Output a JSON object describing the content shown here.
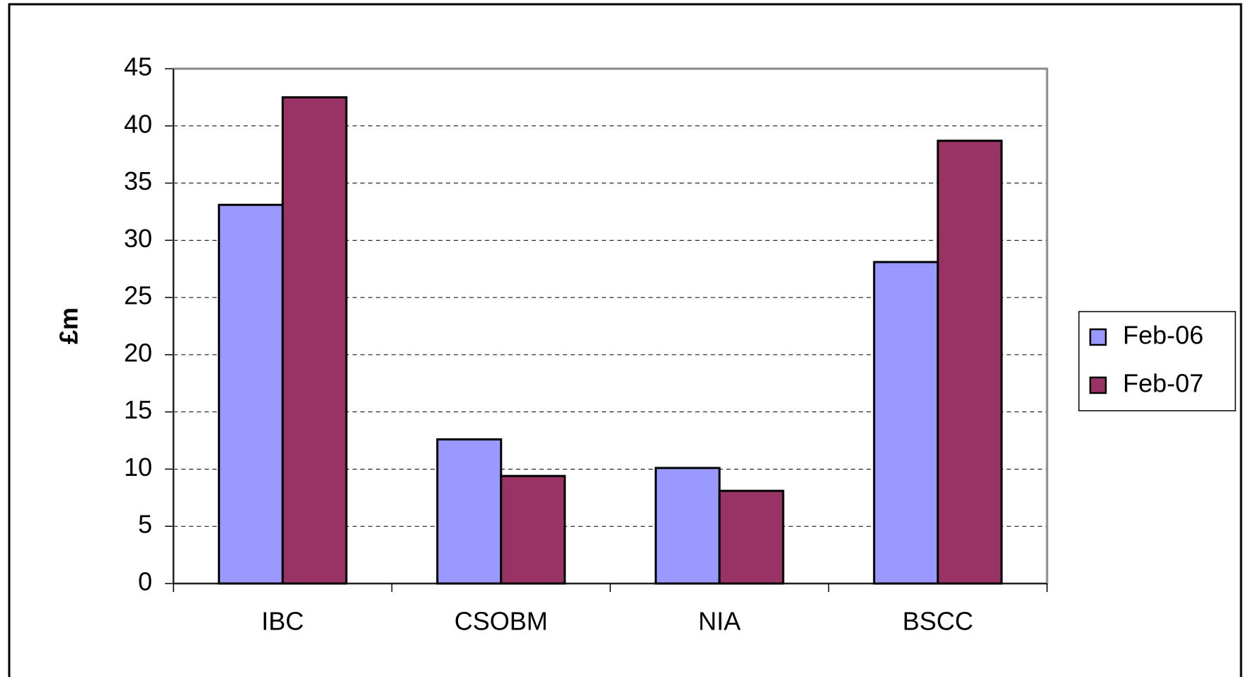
{
  "chart_data": {
    "type": "bar",
    "ylabel": "£m",
    "categories": [
      "IBC",
      "CSOBM",
      "NIA",
      "BSCC"
    ],
    "series": [
      {
        "name": "Feb-06",
        "color": "#9999ff",
        "values": [
          33.1,
          12.6,
          10.1,
          28.1
        ]
      },
      {
        "name": "Feb-07",
        "color": "#993366",
        "values": [
          42.5,
          9.4,
          8.1,
          38.7
        ]
      }
    ],
    "ylim": [
      0,
      45
    ],
    "yticks": [
      0,
      5,
      10,
      15,
      20,
      25,
      30,
      35,
      40,
      45
    ],
    "grid": true,
    "legend": "right"
  }
}
